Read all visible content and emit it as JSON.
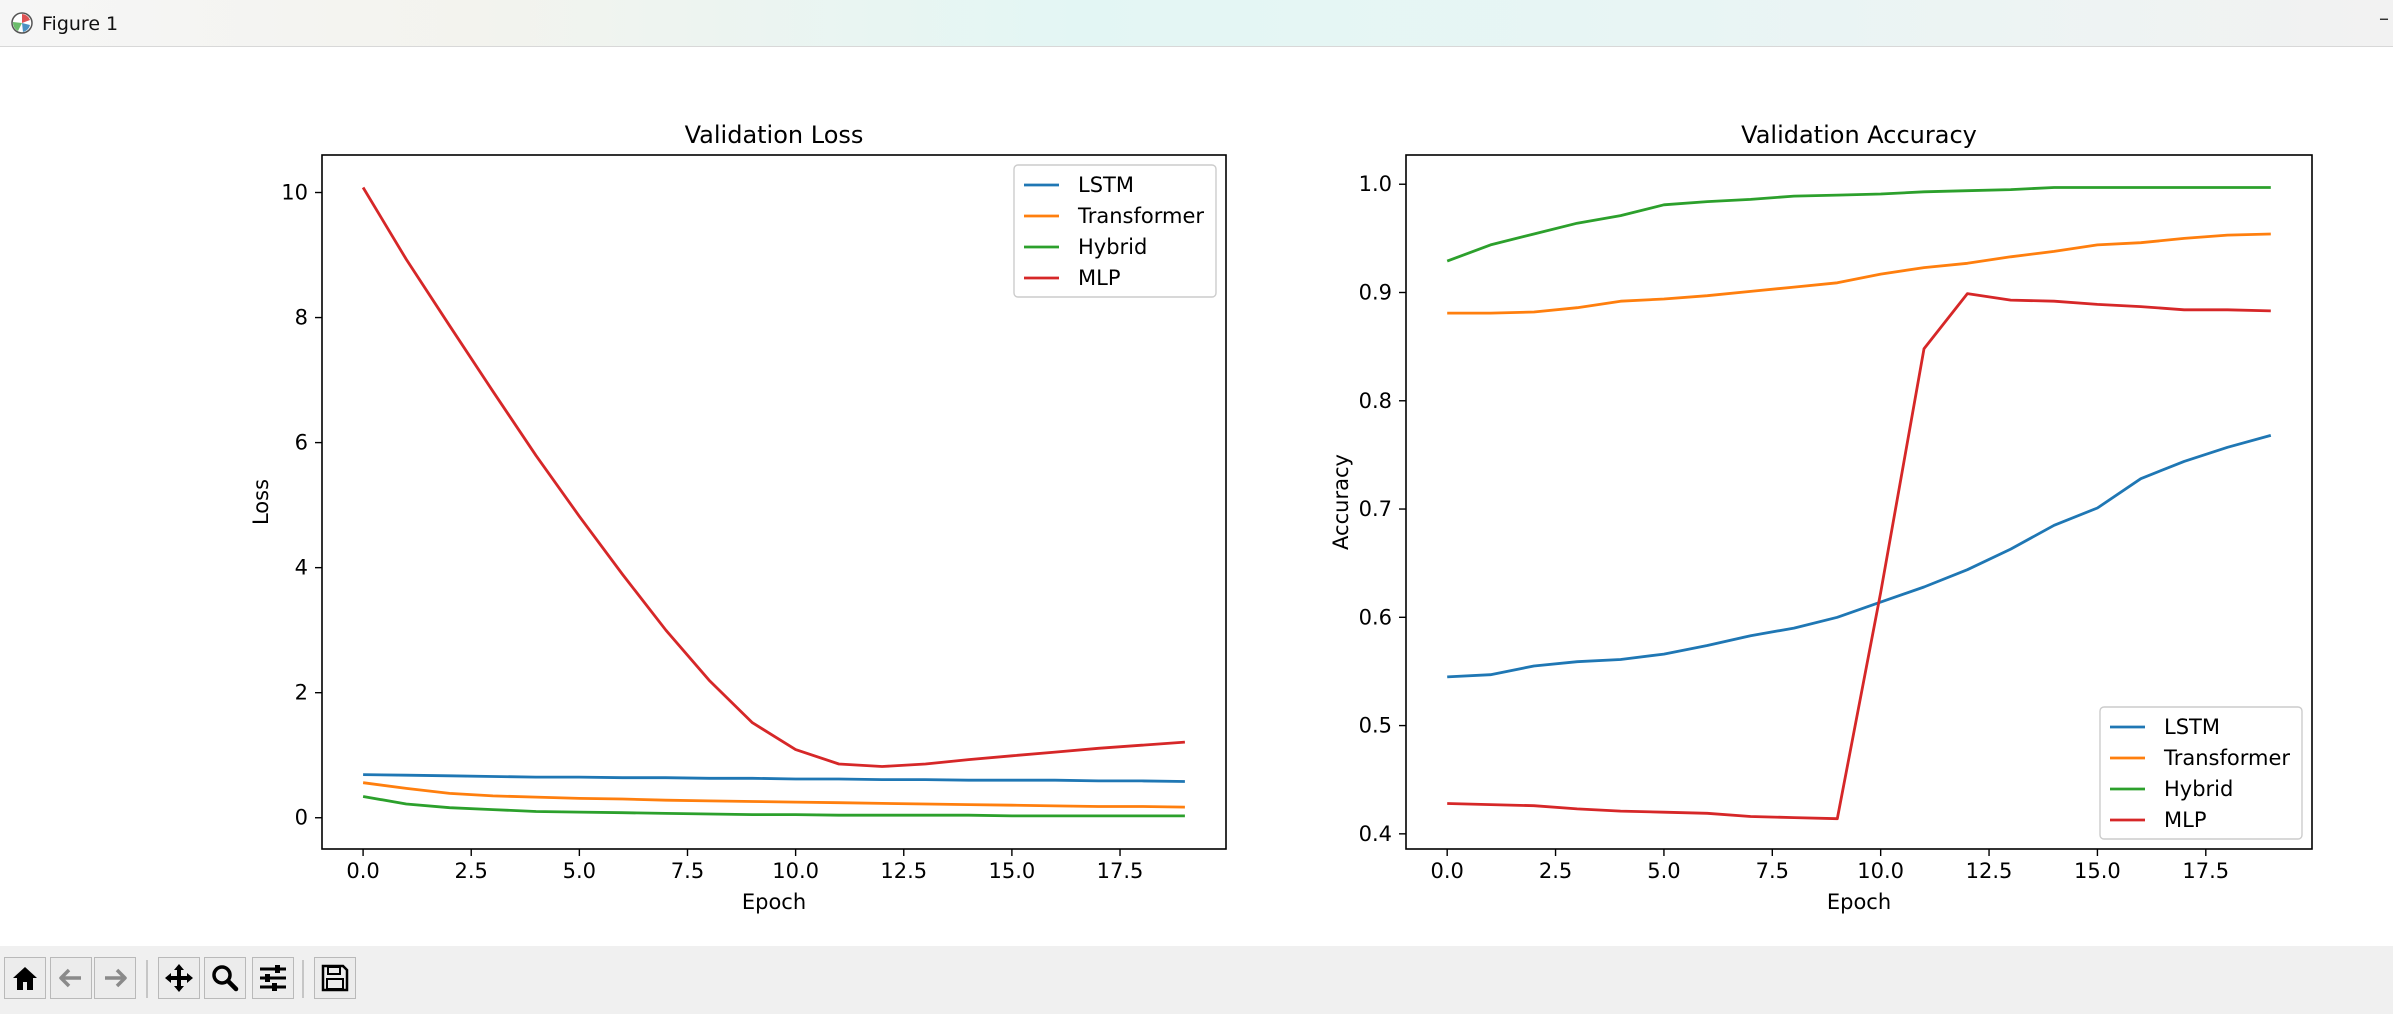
{
  "window": {
    "title": "Figure 1",
    "control": "–"
  },
  "icons": {
    "app": "matplotlib-icon",
    "home": "home-icon",
    "back": "arrow-left-icon",
    "forward": "arrow-right-icon",
    "pan": "move-icon",
    "zoom": "magnifier-icon",
    "configure": "sliders-icon",
    "save": "floppy-disk-icon"
  },
  "colors": {
    "LSTM": "#1f77b4",
    "Transformer": "#ff7f0e",
    "Hybrid": "#2ca02c",
    "MLP": "#d62728"
  },
  "chart_data": [
    {
      "type": "line",
      "title": "Validation Loss",
      "xlabel": "Epoch",
      "ylabel": "Loss",
      "xlim": [
        -0.95,
        19.95
      ],
      "ylim": [
        -0.5,
        10.6
      ],
      "xticks": [
        0,
        2.5,
        5,
        7.5,
        10,
        12.5,
        15,
        17.5
      ],
      "xtick_labels": [
        "0.0",
        "2.5",
        "5.0",
        "7.5",
        "10.0",
        "12.5",
        "15.0",
        "17.5"
      ],
      "yticks": [
        0,
        2,
        4,
        6,
        8,
        10
      ],
      "ytick_labels": [
        "0",
        "2",
        "4",
        "6",
        "8",
        "10"
      ],
      "grid": false,
      "legend": "upper right",
      "x": [
        0,
        1,
        2,
        3,
        4,
        5,
        6,
        7,
        8,
        9,
        10,
        11,
        12,
        13,
        14,
        15,
        16,
        17,
        18,
        19
      ],
      "series": [
        {
          "name": "LSTM",
          "values": [
            0.69,
            0.68,
            0.67,
            0.66,
            0.65,
            0.65,
            0.64,
            0.64,
            0.63,
            0.63,
            0.62,
            0.62,
            0.61,
            0.61,
            0.6,
            0.6,
            0.6,
            0.59,
            0.59,
            0.58
          ]
        },
        {
          "name": "Transformer",
          "values": [
            0.56,
            0.47,
            0.39,
            0.35,
            0.33,
            0.31,
            0.3,
            0.28,
            0.27,
            0.26,
            0.25,
            0.24,
            0.23,
            0.22,
            0.21,
            0.2,
            0.19,
            0.18,
            0.18,
            0.17
          ]
        },
        {
          "name": "Hybrid",
          "values": [
            0.34,
            0.22,
            0.16,
            0.13,
            0.1,
            0.09,
            0.08,
            0.07,
            0.06,
            0.05,
            0.05,
            0.04,
            0.04,
            0.04,
            0.04,
            0.03,
            0.03,
            0.03,
            0.03,
            0.03
          ]
        },
        {
          "name": "MLP",
          "values": [
            10.08,
            8.93,
            7.87,
            6.82,
            5.79,
            4.82,
            3.89,
            3.0,
            2.2,
            1.52,
            1.09,
            0.86,
            0.82,
            0.86,
            0.93,
            0.99,
            1.05,
            1.11,
            1.16,
            1.21
          ]
        }
      ]
    },
    {
      "type": "line",
      "title": "Validation Accuracy",
      "xlabel": "Epoch",
      "ylabel": "Accuracy",
      "xlim": [
        -0.95,
        19.95
      ],
      "ylim": [
        0.386,
        1.027
      ],
      "xticks": [
        0,
        2.5,
        5,
        7.5,
        10,
        12.5,
        15,
        17.5
      ],
      "xtick_labels": [
        "0.0",
        "2.5",
        "5.0",
        "7.5",
        "10.0",
        "12.5",
        "15.0",
        "17.5"
      ],
      "yticks": [
        0.4,
        0.5,
        0.6,
        0.7,
        0.8,
        0.9,
        1.0
      ],
      "ytick_labels": [
        "0.4",
        "0.5",
        "0.6",
        "0.7",
        "0.8",
        "0.9",
        "1.0"
      ],
      "grid": false,
      "legend": "lower right",
      "x": [
        0,
        1,
        2,
        3,
        4,
        5,
        6,
        7,
        8,
        9,
        10,
        11,
        12,
        13,
        14,
        15,
        16,
        17,
        18,
        19
      ],
      "series": [
        {
          "name": "LSTM",
          "values": [
            0.545,
            0.547,
            0.555,
            0.559,
            0.561,
            0.566,
            0.574,
            0.583,
            0.59,
            0.6,
            0.614,
            0.628,
            0.644,
            0.663,
            0.685,
            0.701,
            0.728,
            0.744,
            0.757,
            0.768
          ]
        },
        {
          "name": "Transformer",
          "values": [
            0.881,
            0.881,
            0.882,
            0.886,
            0.892,
            0.894,
            0.897,
            0.901,
            0.905,
            0.909,
            0.917,
            0.923,
            0.927,
            0.933,
            0.938,
            0.944,
            0.946,
            0.95,
            0.953,
            0.954
          ]
        },
        {
          "name": "Hybrid",
          "values": [
            0.929,
            0.944,
            0.954,
            0.964,
            0.971,
            0.981,
            0.984,
            0.986,
            0.989,
            0.99,
            0.991,
            0.993,
            0.994,
            0.995,
            0.997,
            0.997,
            0.997,
            0.997,
            0.997,
            0.997
          ]
        },
        {
          "name": "MLP",
          "values": [
            0.428,
            0.427,
            0.426,
            0.423,
            0.421,
            0.42,
            0.419,
            0.416,
            0.415,
            0.414,
            0.623,
            0.848,
            0.899,
            0.893,
            0.892,
            0.889,
            0.887,
            0.884,
            0.884,
            0.883
          ]
        }
      ]
    }
  ]
}
